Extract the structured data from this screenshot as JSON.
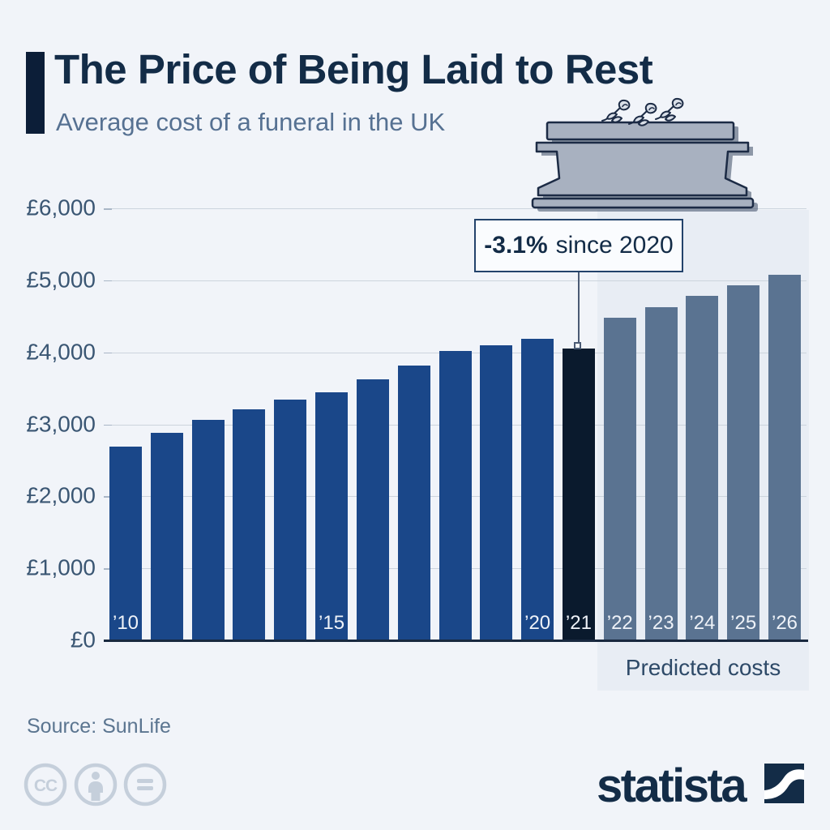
{
  "header": {
    "title": "The Price of Being Laid to Rest",
    "subtitle": "Average cost of a funeral in the UK"
  },
  "chart_data": {
    "type": "bar",
    "title": "The Price of Being Laid to Rest",
    "subtitle": "Average cost of a funeral in the UK",
    "currency": "GBP",
    "ylim": [
      0,
      6000
    ],
    "grid": true,
    "y_ticks": [
      {
        "value": 0,
        "label": "£0"
      },
      {
        "value": 1000,
        "label": "£1,000"
      },
      {
        "value": 2000,
        "label": "£2,000"
      },
      {
        "value": 3000,
        "label": "£3,000"
      },
      {
        "value": 4000,
        "label": "£4,000"
      },
      {
        "value": 5000,
        "label": "£5,000"
      },
      {
        "value": 6000,
        "label": "£6,000"
      }
    ],
    "bars": [
      {
        "year": 2010,
        "label": "’10",
        "value": 2695,
        "kind": "actual"
      },
      {
        "year": 2011,
        "label": "",
        "value": 2885,
        "kind": "actual"
      },
      {
        "year": 2012,
        "label": "",
        "value": 3060,
        "kind": "actual"
      },
      {
        "year": 2013,
        "label": "",
        "value": 3205,
        "kind": "actual"
      },
      {
        "year": 2014,
        "label": "",
        "value": 3345,
        "kind": "actual"
      },
      {
        "year": 2015,
        "label": "’15",
        "value": 3440,
        "kind": "actual"
      },
      {
        "year": 2016,
        "label": "",
        "value": 3625,
        "kind": "actual"
      },
      {
        "year": 2017,
        "label": "",
        "value": 3820,
        "kind": "actual"
      },
      {
        "year": 2018,
        "label": "",
        "value": 4015,
        "kind": "actual"
      },
      {
        "year": 2019,
        "label": "",
        "value": 4100,
        "kind": "actual"
      },
      {
        "year": 2020,
        "label": "’20",
        "value": 4184,
        "kind": "actual"
      },
      {
        "year": 2021,
        "label": "’21",
        "value": 4056,
        "kind": "highlight"
      },
      {
        "year": 2022,
        "label": "’22",
        "value": 4480,
        "kind": "predicted"
      },
      {
        "year": 2023,
        "label": "’23",
        "value": 4630,
        "kind": "predicted"
      },
      {
        "year": 2024,
        "label": "’24",
        "value": 4780,
        "kind": "predicted"
      },
      {
        "year": 2025,
        "label": "’25",
        "value": 4930,
        "kind": "predicted"
      },
      {
        "year": 2026,
        "label": "’26",
        "value": 5080,
        "kind": "predicted"
      }
    ],
    "annotation": {
      "highlight": "-3.1%",
      "rest": "since 2020",
      "points_to_year": 2021
    },
    "predicted_label": "Predicted costs",
    "legend_position": "none"
  },
  "colors": {
    "background": "#f1f4f9",
    "predicted_panel": "#e8edf4",
    "bar_actual": "#1a4789",
    "bar_highlight": "#0a1a2d",
    "bar_predicted": "#5a7391",
    "title_text": "#132c47",
    "subtitle_text": "#567192",
    "axis_label_text": "#3a5673",
    "gridline": "#ccd4dd"
  },
  "footer": {
    "source": "Source: SunLife",
    "license_icons": [
      "cc-icon",
      "attribution-person-icon",
      "equals-icon"
    ],
    "logo_text": "statista"
  }
}
